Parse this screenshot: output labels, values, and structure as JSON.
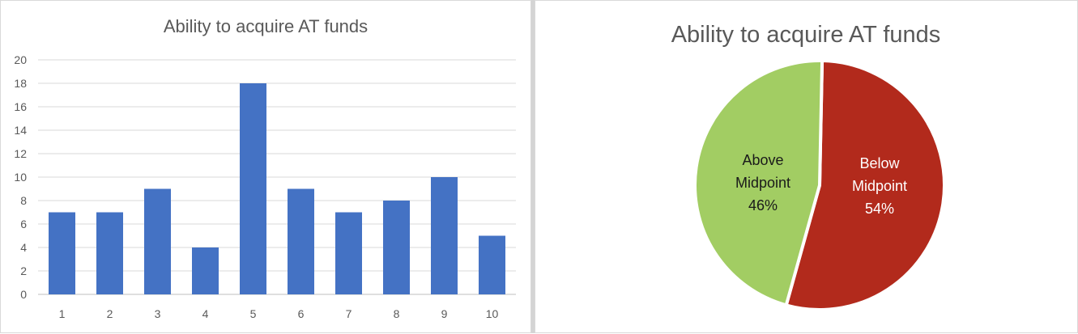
{
  "chart_data": [
    {
      "type": "bar",
      "title": "Ability to acquire AT funds",
      "categories": [
        "1",
        "2",
        "3",
        "4",
        "5",
        "6",
        "7",
        "8",
        "9",
        "10"
      ],
      "values": [
        7,
        7,
        9,
        4,
        18,
        9,
        7,
        8,
        10,
        5
      ],
      "y_ticks": [
        "0",
        "2",
        "4",
        "6",
        "8",
        "10",
        "12",
        "14",
        "16",
        "18",
        "20"
      ],
      "ylim": [
        0,
        20
      ],
      "grid": true,
      "color": "#4472c4"
    },
    {
      "type": "pie",
      "title": "Ability to acquire AT funds",
      "slices": [
        {
          "label_line1": "Below",
          "label_line2": "Midpoint",
          "percent_text": "54%",
          "value": 54,
          "color": "#b22a1c"
        },
        {
          "label_line1": "Above",
          "label_line2": "Midpoint",
          "percent_text": "46%",
          "value": 46,
          "color": "#a2cd63"
        }
      ]
    }
  ]
}
